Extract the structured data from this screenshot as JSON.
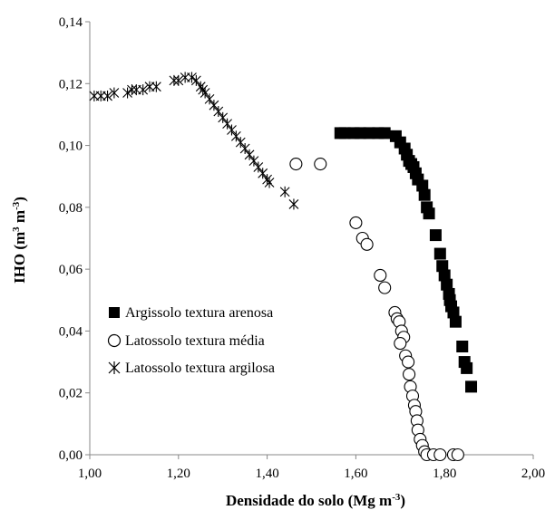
{
  "chart_data": {
    "type": "scatter",
    "xlabel": "Densidade do solo (Mg m",
    "xlabel_sup": "-3",
    "xlabel_end": ")",
    "ylabel": "IHO (m",
    "ylabel_sup1": "3",
    "ylabel_mid": " m",
    "ylabel_sup2": "-3",
    "ylabel_end": ")",
    "xlim": [
      1.0,
      2.0
    ],
    "ylim": [
      0.0,
      0.14
    ],
    "x_ticks": [
      1.0,
      1.2,
      1.4,
      1.6,
      1.8,
      2.0
    ],
    "x_tick_labels": [
      "1,00",
      "1,20",
      "1,40",
      "1,60",
      "1,80",
      "2,00"
    ],
    "y_ticks": [
      0.0,
      0.02,
      0.04,
      0.06,
      0.08,
      0.1,
      0.12,
      0.14
    ],
    "y_tick_labels": [
      "0,00",
      "0,02",
      "0,04",
      "0,06",
      "0,08",
      "0,10",
      "0,12",
      "0,14"
    ],
    "grid": false,
    "legend_position": "left-lower-middle",
    "series": [
      {
        "name": "Argissolo textura arenosa",
        "marker": "square-filled",
        "color": "#000000",
        "points": [
          [
            1.565,
            0.104
          ],
          [
            1.575,
            0.104
          ],
          [
            1.595,
            0.104
          ],
          [
            1.61,
            0.104
          ],
          [
            1.63,
            0.104
          ],
          [
            1.65,
            0.104
          ],
          [
            1.665,
            0.104
          ],
          [
            1.69,
            0.103
          ],
          [
            1.7,
            0.101
          ],
          [
            1.71,
            0.099
          ],
          [
            1.715,
            0.097
          ],
          [
            1.72,
            0.095
          ],
          [
            1.725,
            0.094
          ],
          [
            1.73,
            0.093
          ],
          [
            1.735,
            0.091
          ],
          [
            1.74,
            0.089
          ],
          [
            1.75,
            0.087
          ],
          [
            1.755,
            0.084
          ],
          [
            1.76,
            0.08
          ],
          [
            1.765,
            0.078
          ],
          [
            1.78,
            0.071
          ],
          [
            1.79,
            0.065
          ],
          [
            1.795,
            0.061
          ],
          [
            1.8,
            0.058
          ],
          [
            1.805,
            0.055
          ],
          [
            1.81,
            0.052
          ],
          [
            1.812,
            0.05
          ],
          [
            1.815,
            0.048
          ],
          [
            1.82,
            0.046
          ],
          [
            1.825,
            0.043
          ],
          [
            1.84,
            0.035
          ],
          [
            1.845,
            0.03
          ],
          [
            1.85,
            0.028
          ],
          [
            1.86,
            0.022
          ]
        ]
      },
      {
        "name": "Latossolo textura média",
        "marker": "circle-open",
        "color": "#000000",
        "points": [
          [
            1.465,
            0.094
          ],
          [
            1.52,
            0.094
          ],
          [
            1.6,
            0.075
          ],
          [
            1.615,
            0.07
          ],
          [
            1.625,
            0.068
          ],
          [
            1.655,
            0.058
          ],
          [
            1.665,
            0.054
          ],
          [
            1.688,
            0.046
          ],
          [
            1.693,
            0.044
          ],
          [
            1.698,
            0.043
          ],
          [
            1.703,
            0.04
          ],
          [
            1.708,
            0.038
          ],
          [
            1.7,
            0.036
          ],
          [
            1.712,
            0.032
          ],
          [
            1.718,
            0.03
          ],
          [
            1.72,
            0.026
          ],
          [
            1.723,
            0.022
          ],
          [
            1.728,
            0.019
          ],
          [
            1.732,
            0.016
          ],
          [
            1.735,
            0.014
          ],
          [
            1.738,
            0.011
          ],
          [
            1.74,
            0.008
          ],
          [
            1.745,
            0.005
          ],
          [
            1.75,
            0.003
          ],
          [
            1.755,
            0.001
          ],
          [
            1.76,
            0.0
          ],
          [
            1.775,
            0.0
          ],
          [
            1.79,
            0.0
          ],
          [
            1.82,
            0.0
          ],
          [
            1.83,
            0.0
          ]
        ]
      },
      {
        "name": "Latossolo textura argilosa",
        "marker": "asterisk",
        "color": "#000000",
        "points": [
          [
            1.01,
            0.116
          ],
          [
            1.025,
            0.116
          ],
          [
            1.04,
            0.116
          ],
          [
            1.055,
            0.117
          ],
          [
            1.085,
            0.117
          ],
          [
            1.095,
            0.118
          ],
          [
            1.105,
            0.118
          ],
          [
            1.12,
            0.118
          ],
          [
            1.135,
            0.119
          ],
          [
            1.15,
            0.119
          ],
          [
            1.19,
            0.121
          ],
          [
            1.2,
            0.121
          ],
          [
            1.215,
            0.122
          ],
          [
            1.23,
            0.122
          ],
          [
            1.24,
            0.121
          ],
          [
            1.25,
            0.119
          ],
          [
            1.255,
            0.118
          ],
          [
            1.26,
            0.117
          ],
          [
            1.27,
            0.115
          ],
          [
            1.28,
            0.113
          ],
          [
            1.29,
            0.111
          ],
          [
            1.3,
            0.109
          ],
          [
            1.31,
            0.107
          ],
          [
            1.32,
            0.105
          ],
          [
            1.33,
            0.103
          ],
          [
            1.34,
            0.101
          ],
          [
            1.35,
            0.099
          ],
          [
            1.36,
            0.097
          ],
          [
            1.37,
            0.095
          ],
          [
            1.38,
            0.093
          ],
          [
            1.39,
            0.091
          ],
          [
            1.4,
            0.089
          ],
          [
            1.405,
            0.088
          ],
          [
            1.44,
            0.085
          ],
          [
            1.46,
            0.081
          ]
        ]
      }
    ]
  }
}
